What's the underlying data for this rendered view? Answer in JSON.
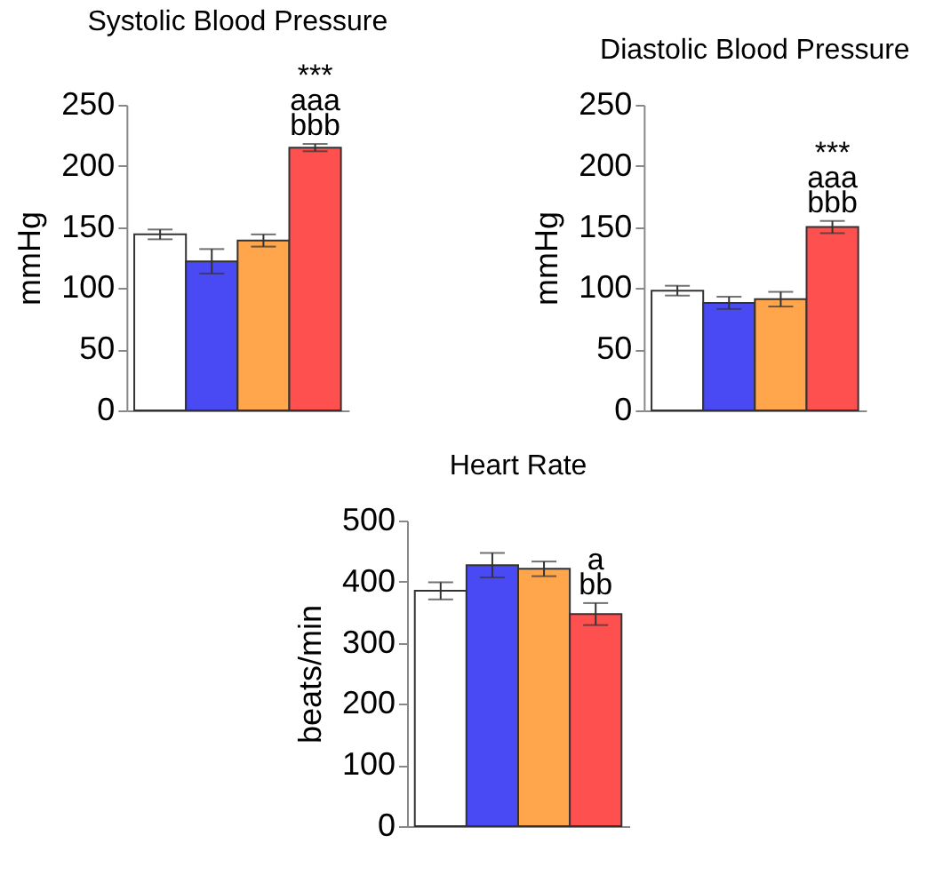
{
  "chart_data": [
    {
      "type": "bar",
      "title": "Systolic Blood Pressure",
      "ylabel": "mmHg",
      "categories": [
        null,
        null,
        null,
        null
      ],
      "values": [
        144,
        122,
        139,
        215
      ],
      "errors": [
        4,
        10,
        5,
        3
      ],
      "colors": [
        "#ffffff",
        "#4a4af5",
        "#ffa64d",
        "#ff5050"
      ],
      "ylim": [
        0,
        250
      ],
      "yticks": [
        0,
        50,
        100,
        150,
        200,
        250
      ],
      "tick_labels": "y",
      "annotations": [
        "***",
        "aaa",
        "bbb"
      ]
    },
    {
      "type": "bar",
      "title": "Diastolic Blood Pressure",
      "ylabel": "mmHg",
      "categories": [
        null,
        null,
        null,
        null
      ],
      "values": [
        98,
        88,
        91,
        150
      ],
      "errors": [
        4,
        5,
        6,
        5
      ],
      "colors": [
        "#ffffff",
        "#4a4af5",
        "#ffa64d",
        "#ff5050"
      ],
      "ylim": [
        0,
        250
      ],
      "yticks": [
        0,
        50,
        100,
        150,
        200,
        250
      ],
      "tick_labels": "y",
      "annotations": [
        "***",
        "aaa",
        "bbb"
      ]
    },
    {
      "type": "bar",
      "title": "Heart Rate",
      "ylabel": "beats/min",
      "categories": [
        null,
        null,
        null,
        null
      ],
      "values": [
        385,
        427,
        421,
        347
      ],
      "errors": [
        14,
        20,
        12,
        18
      ],
      "colors": [
        "#ffffff",
        "#4a4af5",
        "#ffa64d",
        "#ff5050"
      ],
      "ylim": [
        0,
        500
      ],
      "yticks": [
        0,
        100,
        200,
        300,
        400,
        500
      ],
      "tick_labels": "y",
      "annotations": [
        "a",
        "bb"
      ]
    }
  ]
}
